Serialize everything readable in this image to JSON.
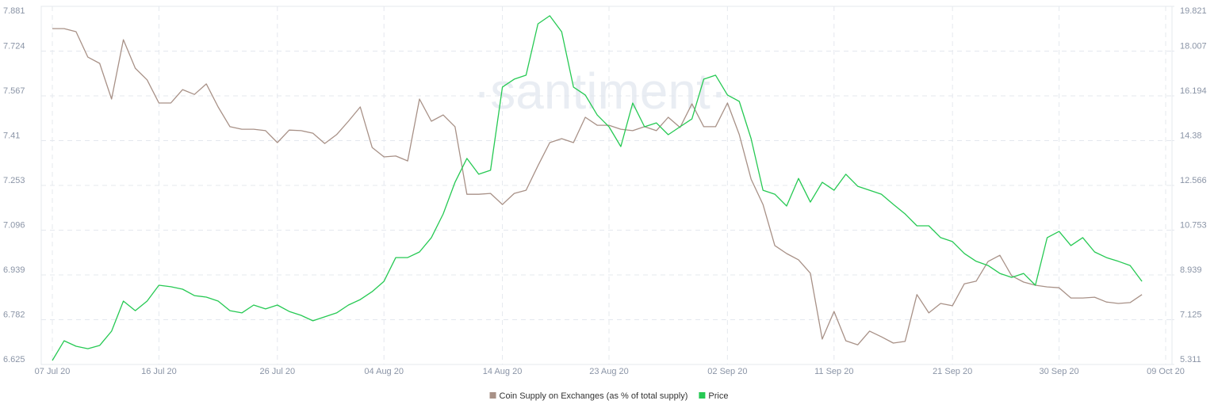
{
  "chart_data": {
    "type": "line",
    "watermark": "·santiment·",
    "categories": [
      "07 Jul 20",
      null,
      null,
      null,
      null,
      null,
      null,
      null,
      null,
      "16 Jul 20",
      null,
      null,
      null,
      null,
      null,
      null,
      null,
      null,
      null,
      "26 Jul 20",
      null,
      null,
      null,
      null,
      null,
      null,
      null,
      null,
      "04 Aug 20",
      null,
      null,
      null,
      null,
      null,
      null,
      null,
      null,
      null,
      "14 Aug 20",
      null,
      null,
      null,
      null,
      null,
      null,
      null,
      null,
      "23 Aug 20",
      null,
      null,
      null,
      null,
      null,
      null,
      null,
      null,
      null,
      "02 Sep 20",
      null,
      null,
      null,
      null,
      null,
      null,
      null,
      null,
      "11 Sep 20",
      null,
      null,
      null,
      null,
      null,
      null,
      null,
      null,
      null,
      "21 Sep 20",
      null,
      null,
      null,
      null,
      null,
      null,
      null,
      null,
      "30 Sep 20",
      null,
      null,
      null,
      null,
      null,
      null,
      null,
      null,
      "09 Oct 20"
    ],
    "series": [
      {
        "name": "Coin Supply on Exchanges (as % of total supply)",
        "color": "#a89187",
        "axis": "y",
        "values": [
          7.803,
          7.803,
          7.792,
          7.703,
          7.681,
          7.556,
          7.764,
          7.664,
          7.623,
          7.542,
          7.542,
          7.589,
          7.572,
          7.609,
          7.528,
          7.459,
          7.45,
          7.45,
          7.445,
          7.403,
          7.447,
          7.445,
          7.436,
          7.4,
          7.431,
          7.478,
          7.528,
          7.386,
          7.353,
          7.356,
          7.339,
          7.556,
          7.478,
          7.5,
          7.459,
          7.222,
          7.222,
          7.225,
          7.186,
          7.225,
          7.236,
          7.322,
          7.403,
          7.417,
          7.403,
          7.492,
          7.464,
          7.464,
          7.45,
          7.445,
          7.459,
          7.445,
          7.492,
          7.456,
          7.539,
          7.459,
          7.459,
          7.542,
          7.431,
          7.275,
          7.186,
          7.042,
          7.014,
          6.992,
          6.945,
          6.714,
          6.811,
          6.708,
          6.694,
          6.742,
          6.722,
          6.7,
          6.706,
          6.87,
          6.806,
          6.839,
          6.831,
          6.908,
          6.917,
          6.986,
          7.008,
          6.936,
          6.914,
          6.903,
          6.897,
          6.894,
          6.858,
          6.858,
          6.861,
          6.844,
          6.839,
          6.842,
          6.87,
          null,
          null
        ]
      },
      {
        "name": "Price",
        "color": "#26c953",
        "axis": "y2",
        "values": [
          5.47,
          6.27,
          6.05,
          5.95,
          6.08,
          6.66,
          7.88,
          7.49,
          7.88,
          8.52,
          8.46,
          8.36,
          8.1,
          8.04,
          7.88,
          7.49,
          7.4,
          7.72,
          7.56,
          7.72,
          7.46,
          7.3,
          7.08,
          7.24,
          7.4,
          7.72,
          7.94,
          8.26,
          8.68,
          9.64,
          9.64,
          9.87,
          10.45,
          11.41,
          12.69,
          13.66,
          13.02,
          13.18,
          16.55,
          16.87,
          17.03,
          19.11,
          19.44,
          18.79,
          16.55,
          16.23,
          15.42,
          14.94,
          14.14,
          15.9,
          14.94,
          15.1,
          14.62,
          14.94,
          15.26,
          16.87,
          17.03,
          16.23,
          15.97,
          14.46,
          12.37,
          12.21,
          11.73,
          12.85,
          11.89,
          12.69,
          12.37,
          13.02,
          12.53,
          12.37,
          12.21,
          11.8,
          11.41,
          10.93,
          10.93,
          10.45,
          10.29,
          9.81,
          9.49,
          9.32,
          9,
          8.84,
          9,
          8.52,
          10.45,
          10.7,
          10.13,
          10.45,
          9.87,
          9.64,
          9.49,
          9.32,
          8.68,
          null,
          null
        ]
      }
    ],
    "ylim": [
      6.625,
      7.881
    ],
    "yticks": [
      6.625,
      6.782,
      6.939,
      7.096,
      7.253,
      7.41,
      7.567,
      7.724,
      7.881
    ],
    "y2lim": [
      5.311,
      19.821
    ],
    "y2ticks": [
      5.311,
      7.125,
      8.939,
      10.753,
      12.566,
      14.38,
      16.194,
      18.007,
      19.821
    ],
    "grid": true,
    "legend": "bottom"
  }
}
